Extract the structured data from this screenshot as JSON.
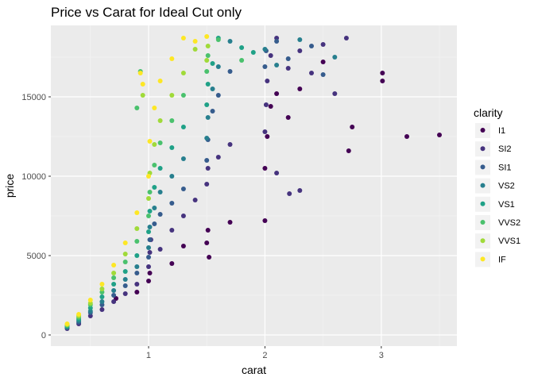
{
  "chart_data": {
    "type": "scatter",
    "title": "Price vs Carat for Ideal Cut only",
    "xlabel": "carat",
    "ylabel": "price",
    "xlim": [
      0.16,
      3.65
    ],
    "ylim": [
      -700,
      19500
    ],
    "xticks": [
      1,
      2,
      3
    ],
    "yticks": [
      0,
      5000,
      10000,
      15000
    ],
    "grid": true,
    "legend": {
      "title": "clarity",
      "position": "right"
    },
    "series": [
      {
        "name": "I1",
        "color": "#440154",
        "points": [
          [
            0.72,
            2300
          ],
          [
            0.9,
            2700
          ],
          [
            1.0,
            3400
          ],
          [
            1.01,
            3900
          ],
          [
            1.2,
            4500
          ],
          [
            1.3,
            5600
          ],
          [
            1.5,
            5800
          ],
          [
            1.51,
            6600
          ],
          [
            1.7,
            7100
          ],
          [
            1.52,
            4900
          ],
          [
            2.0,
            7200
          ],
          [
            2.0,
            10500
          ],
          [
            2.02,
            12500
          ],
          [
            2.05,
            14400
          ],
          [
            2.1,
            15200
          ],
          [
            2.2,
            13700
          ],
          [
            2.3,
            15500
          ],
          [
            2.5,
            17200
          ],
          [
            2.72,
            11600
          ],
          [
            2.75,
            13100
          ],
          [
            3.01,
            16500
          ],
          [
            3.01,
            16000
          ],
          [
            3.22,
            12500
          ],
          [
            3.5,
            12600
          ]
        ]
      },
      {
        "name": "SI2",
        "color": "#46337e",
        "points": [
          [
            0.3,
            400
          ],
          [
            0.4,
            700
          ],
          [
            0.5,
            1200
          ],
          [
            0.6,
            1600
          ],
          [
            0.7,
            2100
          ],
          [
            0.8,
            2600
          ],
          [
            0.9,
            3200
          ],
          [
            1.0,
            4300
          ],
          [
            1.01,
            5200
          ],
          [
            1.02,
            6000
          ],
          [
            1.1,
            5400
          ],
          [
            1.2,
            6600
          ],
          [
            1.3,
            7500
          ],
          [
            1.4,
            8500
          ],
          [
            1.5,
            9500
          ],
          [
            1.51,
            10500
          ],
          [
            1.6,
            11200
          ],
          [
            1.7,
            12000
          ],
          [
            2.0,
            12800
          ],
          [
            2.01,
            14500
          ],
          [
            2.02,
            16000
          ],
          [
            2.05,
            17600
          ],
          [
            2.1,
            18700
          ],
          [
            2.2,
            16800
          ],
          [
            2.3,
            17900
          ],
          [
            2.4,
            16500
          ],
          [
            2.5,
            18300
          ],
          [
            2.6,
            15200
          ],
          [
            2.7,
            18700
          ],
          [
            2.21,
            8900
          ],
          [
            2.3,
            9100
          ],
          [
            2.1,
            10200
          ]
        ]
      },
      {
        "name": "SI1",
        "color": "#365c8d",
        "points": [
          [
            0.3,
            450
          ],
          [
            0.4,
            800
          ],
          [
            0.5,
            1400
          ],
          [
            0.6,
            1900
          ],
          [
            0.7,
            2500
          ],
          [
            0.8,
            3100
          ],
          [
            0.9,
            3900
          ],
          [
            1.0,
            4900
          ],
          [
            1.01,
            6000
          ],
          [
            1.05,
            7000
          ],
          [
            1.1,
            7600
          ],
          [
            1.2,
            8300
          ],
          [
            1.3,
            9200
          ],
          [
            1.5,
            11000
          ],
          [
            1.51,
            12300
          ],
          [
            1.55,
            14100
          ],
          [
            1.6,
            15100
          ],
          [
            1.7,
            16600
          ],
          [
            2.0,
            16900
          ],
          [
            2.01,
            17900
          ],
          [
            2.1,
            18500
          ],
          [
            2.2,
            17400
          ],
          [
            2.4,
            18200
          ],
          [
            2.5,
            16400
          ]
        ]
      },
      {
        "name": "VS2",
        "color": "#277f8e",
        "points": [
          [
            0.3,
            500
          ],
          [
            0.4,
            900
          ],
          [
            0.5,
            1500
          ],
          [
            0.6,
            2100
          ],
          [
            0.7,
            2800
          ],
          [
            0.8,
            3500
          ],
          [
            0.9,
            4300
          ],
          [
            1.0,
            5500
          ],
          [
            1.01,
            6800
          ],
          [
            1.05,
            8000
          ],
          [
            1.1,
            9000
          ],
          [
            1.2,
            10000
          ],
          [
            1.3,
            11100
          ],
          [
            1.5,
            12400
          ],
          [
            1.51,
            13700
          ],
          [
            1.55,
            15500
          ],
          [
            1.6,
            16900
          ],
          [
            1.7,
            18500
          ],
          [
            2.0,
            18000
          ],
          [
            2.1,
            17000
          ],
          [
            2.3,
            18600
          ],
          [
            2.6,
            17500
          ]
        ]
      },
      {
        "name": "VS1",
        "color": "#1fa187",
        "points": [
          [
            0.3,
            550
          ],
          [
            0.4,
            1000
          ],
          [
            0.5,
            1700
          ],
          [
            0.6,
            2400
          ],
          [
            0.7,
            3200
          ],
          [
            0.8,
            4000
          ],
          [
            0.9,
            5000
          ],
          [
            1.0,
            6500
          ],
          [
            1.01,
            7800
          ],
          [
            1.05,
            9300
          ],
          [
            1.1,
            10500
          ],
          [
            1.2,
            11800
          ],
          [
            1.3,
            13100
          ],
          [
            1.5,
            14500
          ],
          [
            1.51,
            15800
          ],
          [
            1.55,
            17100
          ],
          [
            1.6,
            18700
          ],
          [
            1.8,
            18100
          ],
          [
            1.9,
            17800
          ]
        ]
      },
      {
        "name": "VVS2",
        "color": "#4ac16d",
        "points": [
          [
            0.3,
            600
          ],
          [
            0.4,
            1100
          ],
          [
            0.5,
            1900
          ],
          [
            0.6,
            2700
          ],
          [
            0.7,
            3600
          ],
          [
            0.8,
            4600
          ],
          [
            0.9,
            5900
          ],
          [
            1.0,
            7500
          ],
          [
            1.01,
            9000
          ],
          [
            1.05,
            10700
          ],
          [
            1.1,
            12100
          ],
          [
            1.2,
            13500
          ],
          [
            1.3,
            15100
          ],
          [
            1.5,
            16600
          ],
          [
            1.51,
            17600
          ],
          [
            1.6,
            18600
          ],
          [
            1.8,
            17300
          ],
          [
            0.93,
            16600
          ],
          [
            0.9,
            14300
          ]
        ]
      },
      {
        "name": "VVS1",
        "color": "#a0da39",
        "points": [
          [
            0.3,
            650
          ],
          [
            0.4,
            1200
          ],
          [
            0.5,
            2000
          ],
          [
            0.6,
            2900
          ],
          [
            0.7,
            3900
          ],
          [
            0.8,
            5100
          ],
          [
            0.9,
            6700
          ],
          [
            1.0,
            8600
          ],
          [
            1.01,
            10200
          ],
          [
            1.05,
            12000
          ],
          [
            1.1,
            13500
          ],
          [
            1.2,
            15100
          ],
          [
            1.3,
            16500
          ],
          [
            1.5,
            17300
          ],
          [
            1.51,
            18200
          ],
          [
            1.4,
            18000
          ],
          [
            0.95,
            15100
          ]
        ]
      },
      {
        "name": "IF",
        "color": "#fde725",
        "points": [
          [
            0.3,
            700
          ],
          [
            0.4,
            1300
          ],
          [
            0.5,
            2200
          ],
          [
            0.6,
            3200
          ],
          [
            0.7,
            4400
          ],
          [
            0.8,
            5800
          ],
          [
            0.9,
            7700
          ],
          [
            1.0,
            10000
          ],
          [
            1.01,
            12200
          ],
          [
            1.05,
            14300
          ],
          [
            1.1,
            16000
          ],
          [
            1.2,
            17400
          ],
          [
            1.3,
            18700
          ],
          [
            1.4,
            18500
          ],
          [
            1.5,
            18800
          ],
          [
            0.93,
            16500
          ],
          [
            0.95,
            15800
          ]
        ]
      }
    ]
  }
}
